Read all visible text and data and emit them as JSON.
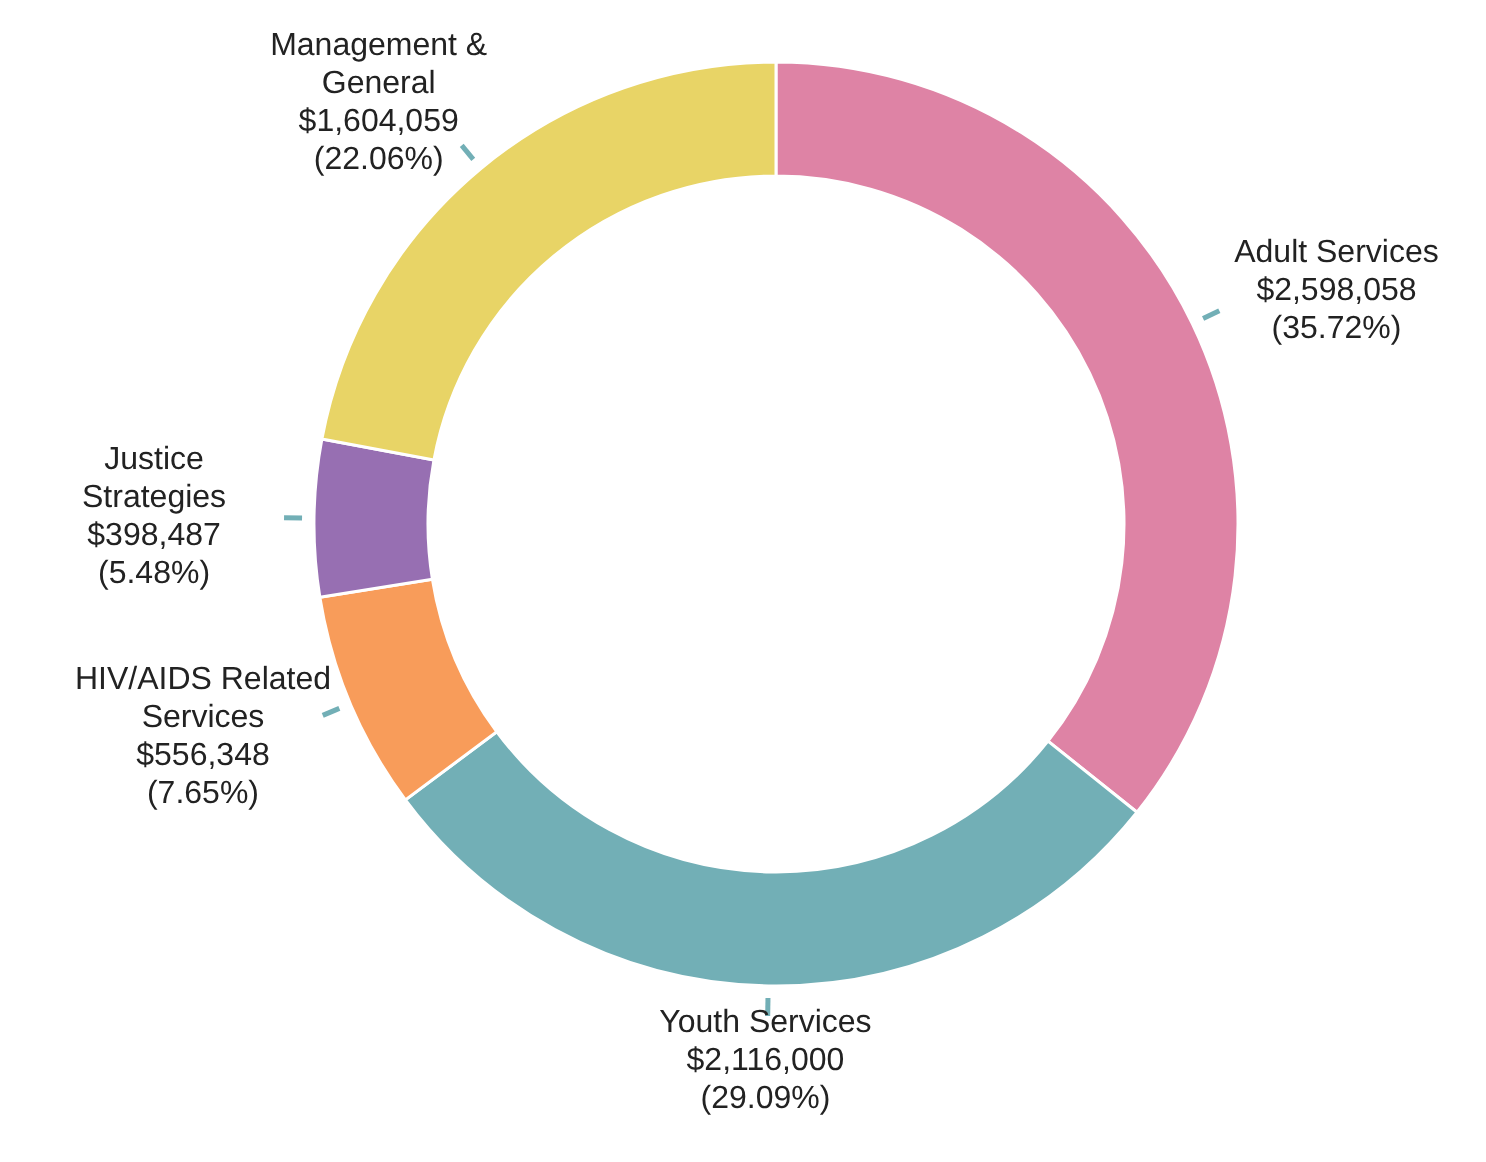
{
  "chart_data": {
    "type": "donut",
    "categories": [
      "Adult Services",
      "Youth Services",
      "HIV/AIDS Related Services",
      "Justice Strategies",
      "Management & General"
    ],
    "values": [
      2598058,
      2116000,
      556348,
      398487,
      1604059
    ],
    "colors": [
      "#de83a5",
      "#72afb6",
      "#f89c5a",
      "#976fb2",
      "#e8d466"
    ],
    "value_labels": [
      "$2,598,058 (35.72%)",
      "$2,116,000 (29.09%)",
      "$556,348 (7.65%)",
      "$398,487 (5.48%)",
      "$1,604,059 (22.06%)"
    ]
  }
}
